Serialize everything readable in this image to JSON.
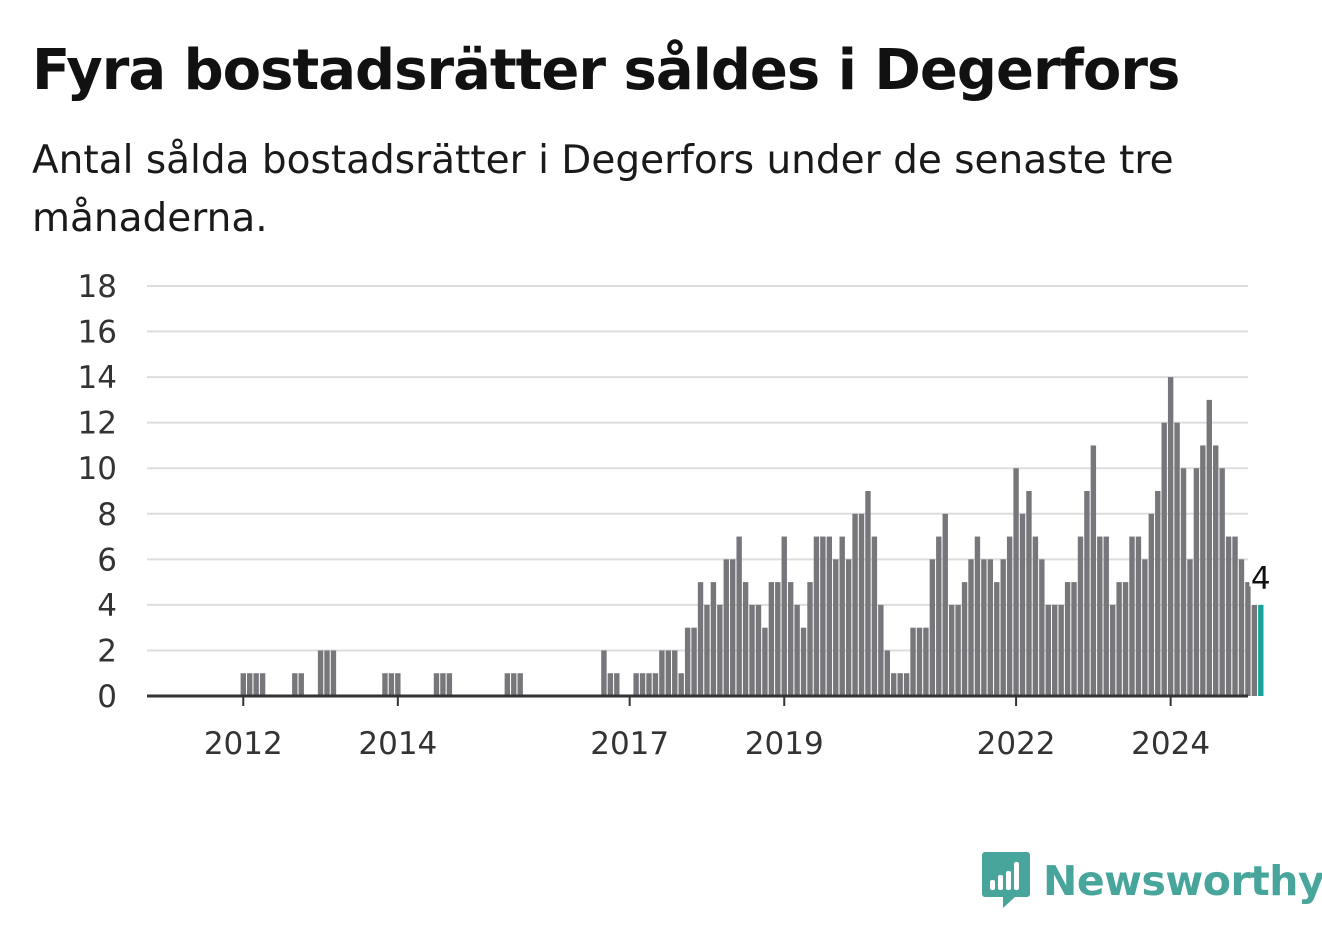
{
  "title": "Fyra bostadsrätter såldes i Degerfors",
  "subtitle": "Antal sålda bostadsrätter i Degerfors under de senaste tre månaderna.",
  "brand": {
    "name": "Newsworthy",
    "icon": "newsworthy-logo-icon"
  },
  "colors": {
    "bar": "#77767b",
    "highlight": "#17a399",
    "grid": "#dddddd",
    "axis": "#333333",
    "brand": "#47a59c"
  },
  "chart_data": {
    "type": "bar",
    "x_start": "2011-06",
    "ylim": [
      0,
      18
    ],
    "y_ticks": [
      "0",
      "2",
      "4",
      "6",
      "8",
      "10",
      "12",
      "14",
      "16",
      "18"
    ],
    "x_ticks": [
      {
        "label": "2012",
        "date": "2012-01"
      },
      {
        "label": "2014",
        "date": "2014-01"
      },
      {
        "label": "2017",
        "date": "2017-01"
      },
      {
        "label": "2019",
        "date": "2019-01"
      },
      {
        "label": "2022",
        "date": "2022-01"
      },
      {
        "label": "2024",
        "date": "2024-01"
      }
    ],
    "series": [
      {
        "values": [
          0,
          0,
          0,
          0,
          0,
          0,
          0,
          1,
          1,
          1,
          1,
          0,
          0,
          0,
          0,
          1,
          1,
          0,
          0,
          2,
          2,
          2,
          0,
          0,
          0,
          0,
          0,
          0,
          0,
          1,
          1,
          1,
          0,
          0,
          0,
          0,
          0,
          1,
          1,
          1,
          0,
          0,
          0,
          0,
          0,
          0,
          0,
          0,
          1,
          1,
          1,
          0,
          0,
          0,
          0,
          0,
          0,
          0,
          0,
          0,
          0,
          0,
          0,
          2,
          1,
          1,
          0,
          0,
          1,
          1,
          1,
          1,
          2,
          2,
          2,
          1,
          3,
          3,
          5,
          4,
          5,
          4,
          6,
          6,
          7,
          5,
          4,
          4,
          3,
          5,
          5,
          7,
          5,
          4,
          3,
          5,
          7,
          7,
          7,
          6,
          7,
          6,
          8,
          8,
          9,
          7,
          4,
          2,
          1,
          1,
          1,
          3,
          3,
          3,
          6,
          7,
          8,
          4,
          4,
          5,
          6,
          7,
          6,
          6,
          5,
          6,
          7,
          10,
          8,
          9,
          7,
          6,
          4,
          4,
          4,
          5,
          5,
          7,
          9,
          11,
          7,
          7,
          4,
          5,
          5,
          7,
          7,
          6,
          8,
          9,
          12,
          14,
          12,
          10,
          6,
          10,
          11,
          13,
          11,
          10,
          7,
          7,
          6,
          5,
          4,
          4
        ]
      }
    ],
    "last_value_label": "4"
  }
}
